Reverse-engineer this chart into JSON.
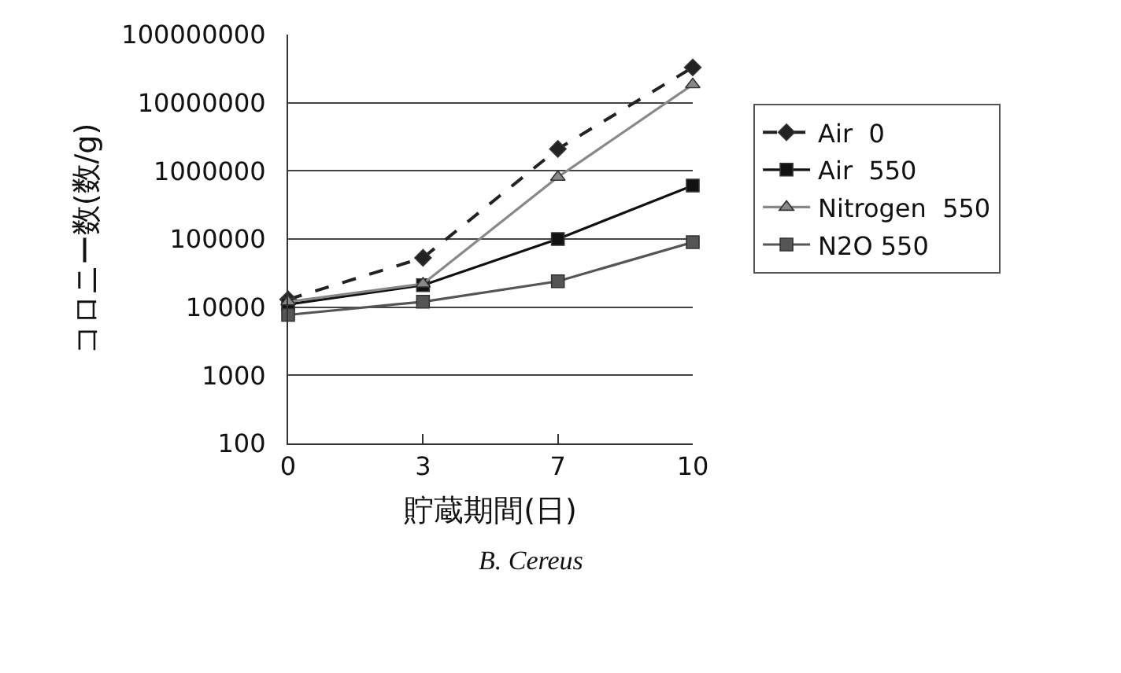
{
  "chart_data": {
    "type": "line",
    "categories": [
      "0",
      "3",
      "7",
      "10"
    ],
    "xlabel": "貯蔵期間(日)",
    "ylabel": "コロニー数(数/g)",
    "log": "y",
    "ylim": [
      100,
      100000000
    ],
    "yticks": [
      100,
      1000,
      10000,
      100000,
      1000000,
      10000000,
      100000000
    ],
    "grid": "y",
    "legend": "right",
    "annotations": [
      "B. Cereus"
    ],
    "series": [
      {
        "name": "Air  0",
        "color": "#222222",
        "marker": "diamond",
        "line_style": "dashed",
        "values": [
          13000,
          53000,
          2100000,
          33000000
        ]
      },
      {
        "name": "Air  550",
        "color": "#111111",
        "marker": "square",
        "line_style": "solid",
        "values": [
          11000,
          21000,
          100000,
          610000
        ]
      },
      {
        "name": "Nitrogen  550",
        "color": "#888888",
        "marker": "triangle",
        "line_style": "solid",
        "values": [
          12000,
          22000,
          810000,
          18500000
        ]
      },
      {
        "name": "N2O 550",
        "color": "#555555",
        "marker": "square",
        "line_style": "solid",
        "values": [
          7700,
          12000,
          24000,
          90000
        ]
      }
    ]
  }
}
